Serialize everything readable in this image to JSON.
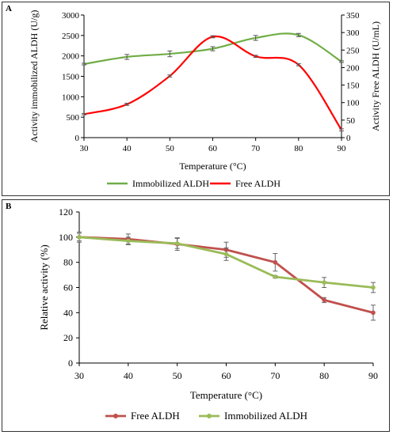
{
  "chart_data": [
    {
      "panel_label": "A",
      "type": "line",
      "xlabel": "Temperature (°C)",
      "ylabel_left": "Activity immobilized ALDH (U/g)",
      "ylabel_right": "Activity Free ALDH (U/mL)",
      "x_ticks": [
        30,
        40,
        50,
        60,
        70,
        80,
        90
      ],
      "y_left_ticks": [
        0,
        500,
        1000,
        1500,
        2000,
        2500,
        3000
      ],
      "y_right_ticks": [
        0,
        50,
        100,
        150,
        200,
        250,
        300,
        350
      ],
      "xlim": [
        30,
        90
      ],
      "ylim_left": [
        0,
        3000
      ],
      "ylim_right": [
        0,
        350
      ],
      "grid": false,
      "legend_position": "bottom",
      "series": [
        {
          "name": "Immobilized ALDH",
          "axis": "left",
          "color": "#70AD47",
          "x": [
            30,
            40,
            50,
            60,
            70,
            80,
            90
          ],
          "values": [
            1800,
            1975,
            2050,
            2175,
            2440,
            2510,
            1860
          ],
          "errors": [
            20,
            60,
            70,
            50,
            60,
            40,
            20
          ]
        },
        {
          "name": "Free ALDH",
          "axis": "right",
          "color": "#FF0000",
          "x": [
            30,
            40,
            50,
            60,
            70,
            80,
            90
          ],
          "values": [
            67,
            95,
            176,
            288,
            232,
            208,
            22
          ],
          "errors": [
            2,
            3,
            3,
            3,
            3,
            3,
            3
          ]
        }
      ]
    },
    {
      "panel_label": "B",
      "type": "line",
      "xlabel": "Temperature (°C)",
      "ylabel": "Relative activity (%)",
      "x_ticks": [
        30,
        40,
        50,
        60,
        70,
        80,
        90
      ],
      "y_ticks": [
        0,
        20,
        40,
        60,
        80,
        100,
        120
      ],
      "xlim": [
        30,
        90
      ],
      "ylim": [
        0,
        120
      ],
      "grid": false,
      "legend_position": "bottom",
      "series": [
        {
          "name": "Free ALDH",
          "color": "#C0504D",
          "x": [
            30,
            40,
            50,
            60,
            70,
            80,
            90
          ],
          "values": [
            100,
            98.5,
            94.5,
            90,
            80,
            50,
            40
          ],
          "errors": [
            3,
            4,
            5,
            6,
            7,
            2,
            6
          ]
        },
        {
          "name": "Immobilized ALDH",
          "color": "#9BBB59",
          "x": [
            30,
            40,
            50,
            60,
            70,
            80,
            90
          ],
          "values": [
            100,
            97,
            95,
            86.5,
            68.5,
            64,
            60
          ],
          "errors": [
            4,
            3,
            4,
            5,
            1,
            4,
            4
          ]
        }
      ]
    }
  ]
}
